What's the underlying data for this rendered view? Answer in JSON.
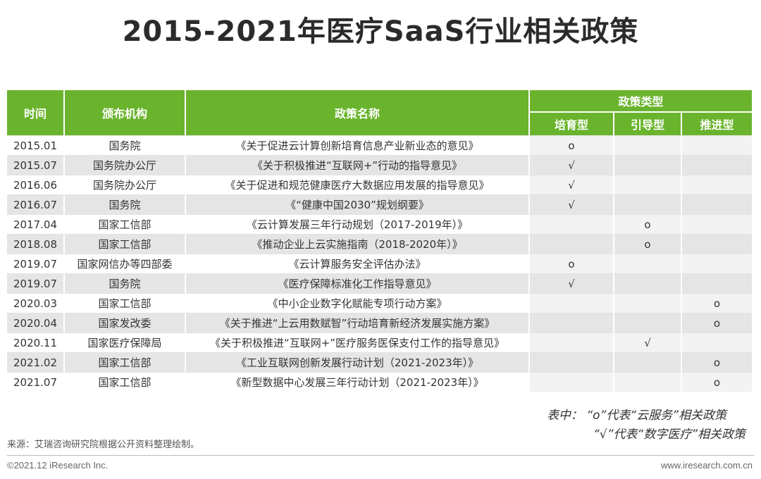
{
  "title": "2015-2021年医疗SaaS行业相关政策",
  "colors": {
    "header_green": "#6ab42d",
    "row_gray": "#e5e5e5"
  },
  "headers": {
    "time": "时间",
    "agency": "颁布机构",
    "policy_name": "政策名称",
    "policy_type": "政策类型",
    "type_cultivate": "培育型",
    "type_guide": "引导型",
    "type_promote": "推进型"
  },
  "rows": [
    {
      "time": "2015.01",
      "agency": "国务院",
      "name": "《关于促进云计算创新培育信息产业新业态的意见》",
      "cultivate": "o",
      "guide": "",
      "promote": ""
    },
    {
      "time": "2015.07",
      "agency": "国务院办公厅",
      "name": "《关于积极推进“互联网+”行动的指导意见》",
      "cultivate": "√",
      "guide": "",
      "promote": ""
    },
    {
      "time": "2016.06",
      "agency": "国务院办公厅",
      "name": "《关于促进和规范健康医疗大数据应用发展的指导意见》",
      "cultivate": "√",
      "guide": "",
      "promote": ""
    },
    {
      "time": "2016.07",
      "agency": "国务院",
      "name": "《“健康中国2030”规划纲要》",
      "cultivate": "√",
      "guide": "",
      "promote": ""
    },
    {
      "time": "2017.04",
      "agency": "国家工信部",
      "name": "《云计算发展三年行动规划（2017-2019年）》",
      "cultivate": "",
      "guide": "o",
      "promote": ""
    },
    {
      "time": "2018.08",
      "agency": "国家工信部",
      "name": "《推动企业上云实施指南（2018-2020年）》",
      "cultivate": "",
      "guide": "o",
      "promote": ""
    },
    {
      "time": "2019.07",
      "agency": "国家网信办等四部委",
      "name": "《云计算服务安全评估办法》",
      "cultivate": "o",
      "guide": "",
      "promote": ""
    },
    {
      "time": "2019.07",
      "agency": "国务院",
      "name": "《医疗保障标准化工作指导意见》",
      "cultivate": "√",
      "guide": "",
      "promote": ""
    },
    {
      "time": "2020.03",
      "agency": "国家工信部",
      "name": "《中小企业数字化赋能专项行动方案》",
      "cultivate": "",
      "guide": "",
      "promote": "o"
    },
    {
      "time": "2020.04",
      "agency": "国家发改委",
      "name": "《关于推进“上云用数赋智”行动培育新经济发展实施方案》",
      "cultivate": "",
      "guide": "",
      "promote": "o"
    },
    {
      "time": "2020.11",
      "agency": "国家医疗保障局",
      "name": "《关于积极推进“互联网+”医疗服务医保支付工作的指导意见》",
      "cultivate": "",
      "guide": "√",
      "promote": ""
    },
    {
      "time": "2021.02",
      "agency": "国家工信部",
      "name": "《工业互联网创新发展行动计划（2021-2023年）》",
      "cultivate": "",
      "guide": "",
      "promote": "o"
    },
    {
      "time": "2021.07",
      "agency": "国家工信部",
      "name": "《新型数据中心发展三年行动计划（2021-2023年）》",
      "cultivate": "",
      "guide": "",
      "promote": "o"
    }
  ],
  "legend": {
    "line1": "表中：  “o”代表“云服务”相关政策",
    "line2": "“√”代表“数字医疗”相关政策"
  },
  "source": "来源：艾瑞咨询研究院根据公开资料整理绘制。",
  "copyright": "©2021.12 iResearch Inc.",
  "website": "www.iresearch.com.cn"
}
